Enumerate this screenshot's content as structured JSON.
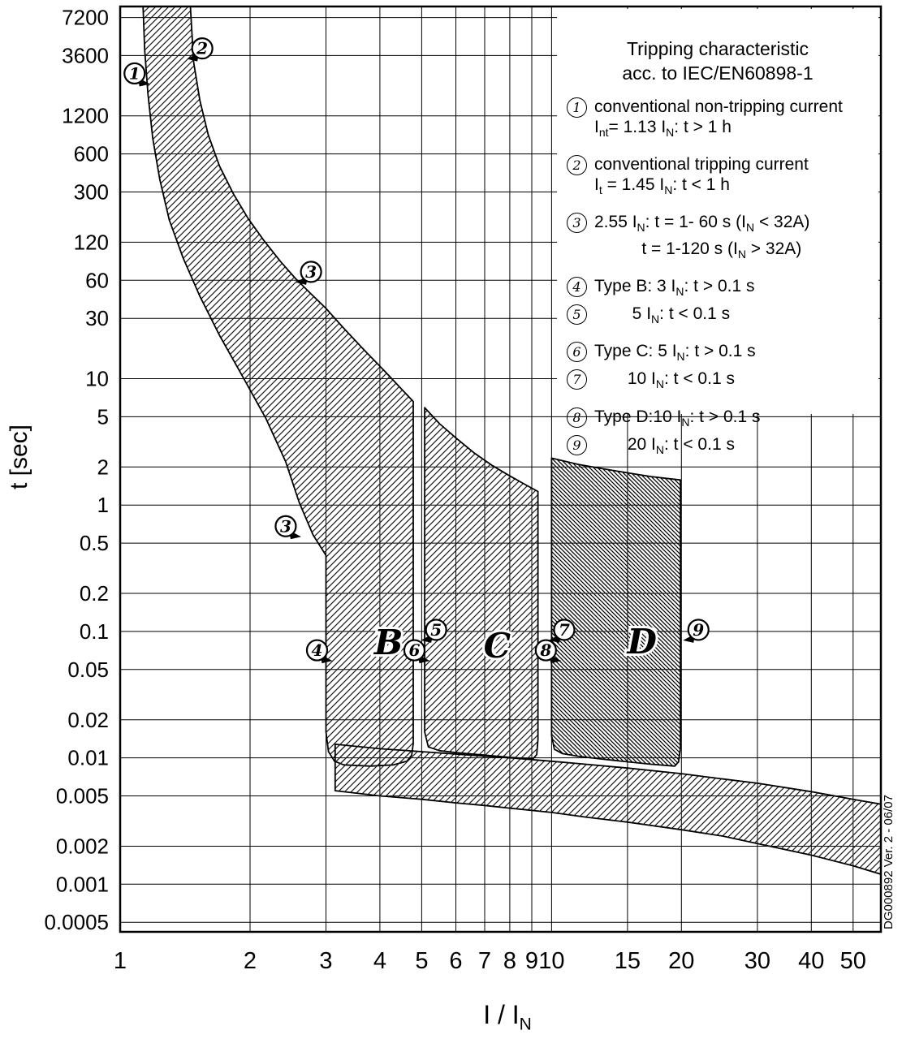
{
  "side_caption": "DG000892 Ver. 2 - 06/07",
  "legend": {
    "title_line1": "Tripping characteristic",
    "title_line2": "acc. to IEC/EN60898-1",
    "items": [
      {
        "num": "1",
        "lines": [
          "conventional non-tripping current",
          "I~nt~= 1.13 I~N~: t > 1 h"
        ]
      },
      {
        "num": "2",
        "lines": [
          "conventional tripping current",
          "I~t~ = 1.45 I~N~: t < 1 h"
        ]
      },
      {
        "num": "3",
        "lines": [
          "2.55 I~N~: t = 1- 60 s (I~N~ < 32A)",
          "          t = 1-120 s (I~N~ > 32A)"
        ]
      },
      {
        "num": "4",
        "lines": [
          "Type B: 3 I~N~: t > 0.1 s"
        ]
      },
      {
        "num": "5",
        "lines": [
          "        5 I~N~: t < 0.1 s"
        ],
        "followup": true
      },
      {
        "num": "6",
        "lines": [
          "Type C: 5 I~N~: t > 0.1 s"
        ]
      },
      {
        "num": "7",
        "lines": [
          "       10 I~N~: t < 0.1 s"
        ],
        "followup": true
      },
      {
        "num": "8",
        "lines": [
          "Type D:10 I~N~: t > 0.1 s"
        ]
      },
      {
        "num": "9",
        "lines": [
          "       20 I~N~: t < 0.1 s"
        ],
        "followup": true
      }
    ]
  },
  "chart_data": {
    "type": "area",
    "title": "Tripping characteristic acc. to IEC/EN60898-1",
    "xlabel": "I / I~N~",
    "ylabel": "t [sec]",
    "grid": true,
    "x_axis": {
      "scale": "log",
      "min": 1,
      "max": 58,
      "ticks": [
        1,
        2,
        3,
        4,
        5,
        6,
        7,
        8,
        9,
        10,
        15,
        20,
        30,
        40,
        50
      ]
    },
    "y_axis": {
      "scale": "log",
      "min": 0.00042,
      "max": 8800,
      "ticks": [
        7200,
        3600,
        1200,
        600,
        300,
        120,
        60,
        30,
        10,
        5,
        2,
        1,
        0.5,
        0.2,
        0.1,
        0.05,
        0.02,
        0.01,
        0.005,
        0.002,
        0.001,
        0.0005
      ]
    },
    "bands": [
      {
        "name": "type-b-tripping-band",
        "hatch": "light",
        "points": [
          [
            1.13,
            8800
          ],
          [
            1.14,
            4000
          ],
          [
            1.16,
            1800
          ],
          [
            1.19,
            800
          ],
          [
            1.235,
            380
          ],
          [
            1.3,
            180
          ],
          [
            1.4,
            90
          ],
          [
            1.53,
            45
          ],
          [
            1.7,
            22
          ],
          [
            1.92,
            10.5
          ],
          [
            2.18,
            4.8
          ],
          [
            2.42,
            2.2
          ],
          [
            2.6,
            1.05
          ],
          [
            2.8,
            0.58
          ],
          [
            3.0,
            0.4
          ],
          [
            3.0,
            0.016
          ],
          [
            3.04,
            0.0112
          ],
          [
            3.14,
            0.0094
          ],
          [
            3.3,
            0.0088
          ],
          [
            3.8,
            0.0086
          ],
          [
            4.3,
            0.0088
          ],
          [
            4.62,
            0.0094
          ],
          [
            4.74,
            0.0105
          ],
          [
            4.78,
            0.013
          ],
          [
            4.78,
            6.6
          ],
          [
            4.5,
            8.2
          ],
          [
            4.1,
            11.5
          ],
          [
            3.7,
            16.5
          ],
          [
            3.3,
            25
          ],
          [
            3.0,
            36
          ],
          [
            2.75,
            48
          ],
          [
            2.55,
            62
          ],
          [
            2.35,
            85
          ],
          [
            2.15,
            125
          ],
          [
            1.98,
            185
          ],
          [
            1.83,
            290
          ],
          [
            1.7,
            480
          ],
          [
            1.6,
            850
          ],
          [
            1.53,
            1600
          ],
          [
            1.48,
            3200
          ],
          [
            1.455,
            8800
          ]
        ]
      },
      {
        "name": "type-c-tripping-band",
        "hatch": "light",
        "points": [
          [
            5.08,
            5.9
          ],
          [
            5.5,
            4.4
          ],
          [
            6.0,
            3.4
          ],
          [
            6.6,
            2.6
          ],
          [
            7.3,
            2.05
          ],
          [
            8.0,
            1.7
          ],
          [
            8.7,
            1.45
          ],
          [
            9.3,
            1.28
          ],
          [
            9.3,
            0.014
          ],
          [
            9.24,
            0.0106
          ],
          [
            9.05,
            0.0098
          ],
          [
            8.0,
            0.0101
          ],
          [
            7.0,
            0.0105
          ],
          [
            6.0,
            0.011
          ],
          [
            5.5,
            0.0114
          ],
          [
            5.18,
            0.0122
          ],
          [
            5.08,
            0.016
          ]
        ]
      },
      {
        "name": "type-d-tripping-band",
        "hatch": "dense",
        "points": [
          [
            10.0,
            2.35
          ],
          [
            11.5,
            2.1
          ],
          [
            13,
            1.95
          ],
          [
            15,
            1.8
          ],
          [
            17,
            1.68
          ],
          [
            19.9,
            1.58
          ],
          [
            19.9,
            0.012
          ],
          [
            19.7,
            0.0093
          ],
          [
            19.3,
            0.0086
          ],
          [
            17,
            0.0089
          ],
          [
            15,
            0.0093
          ],
          [
            13,
            0.0098
          ],
          [
            11.5,
            0.0103
          ],
          [
            10.6,
            0.0108
          ],
          [
            10.15,
            0.0117
          ],
          [
            10.0,
            0.015
          ]
        ]
      },
      {
        "name": "contact-opening-time-band",
        "hatch": "light",
        "points": [
          [
            3.15,
            0.0128
          ],
          [
            4,
            0.0118
          ],
          [
            5,
            0.0112
          ],
          [
            6,
            0.0107
          ],
          [
            7,
            0.0103
          ],
          [
            8,
            0.01
          ],
          [
            10,
            0.0094
          ],
          [
            12,
            0.0089
          ],
          [
            15,
            0.0083
          ],
          [
            20,
            0.0075
          ],
          [
            25,
            0.0068
          ],
          [
            30,
            0.0063
          ],
          [
            40,
            0.0054
          ],
          [
            50,
            0.0047
          ],
          [
            58,
            0.0043
          ],
          [
            58,
            0.0012
          ],
          [
            50,
            0.0014
          ],
          [
            40,
            0.0017
          ],
          [
            30,
            0.0021
          ],
          [
            25,
            0.0024
          ],
          [
            20,
            0.0027
          ],
          [
            15,
            0.0031
          ],
          [
            12,
            0.0034
          ],
          [
            10,
            0.0037
          ],
          [
            8,
            0.004
          ],
          [
            7,
            0.0042
          ],
          [
            6,
            0.0044
          ],
          [
            5,
            0.0047
          ],
          [
            4,
            0.005
          ],
          [
            3.15,
            0.0055
          ]
        ]
      }
    ],
    "region_labels": [
      {
        "text": "B",
        "x": 4.19,
        "t": 0.066
      },
      {
        "text": "C",
        "x": 7.48,
        "t": 0.062
      },
      {
        "text": "D",
        "x": 16.2,
        "t": 0.067
      }
    ],
    "markers": [
      {
        "label": "1",
        "x": 1.08,
        "t": 2600,
        "tail": "right"
      },
      {
        "label": "2",
        "x": 1.55,
        "t": 4100,
        "tail": "left"
      },
      {
        "label": "3",
        "x": 2.77,
        "t": 70,
        "tail": "left"
      },
      {
        "label": "3",
        "x": 2.42,
        "t": 0.68,
        "tail": "right"
      },
      {
        "label": "4",
        "x": 2.86,
        "t": 0.071,
        "tail": "right"
      },
      {
        "label": "5",
        "x": 5.4,
        "t": 0.103,
        "tail": "left"
      },
      {
        "label": "6",
        "x": 4.81,
        "t": 0.071,
        "tail": "right"
      },
      {
        "label": "7",
        "x": 10.7,
        "t": 0.103,
        "tail": "left"
      },
      {
        "label": "8",
        "x": 9.7,
        "t": 0.071,
        "tail": "right"
      },
      {
        "label": "9",
        "x": 21.9,
        "t": 0.103,
        "tail": "left"
      }
    ]
  }
}
